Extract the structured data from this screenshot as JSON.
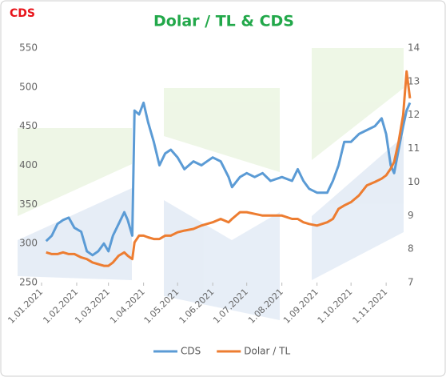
{
  "chart_data": {
    "type": "line",
    "title": "Dolar / TL & CDS",
    "ylabel": "CDS",
    "x": [
      "2021-01-05",
      "2021-01-10",
      "2021-01-15",
      "2021-01-20",
      "2021-01-25",
      "2021-01-30",
      "2021-02-05",
      "2021-02-10",
      "2021-02-15",
      "2021-02-20",
      "2021-02-25",
      "2021-03-01",
      "2021-03-05",
      "2021-03-10",
      "2021-03-15",
      "2021-03-18",
      "2021-03-22",
      "2021-03-24",
      "2021-03-28",
      "2021-04-01",
      "2021-04-05",
      "2021-04-10",
      "2021-04-15",
      "2021-04-20",
      "2021-04-25",
      "2021-05-01",
      "2021-05-07",
      "2021-05-15",
      "2021-05-22",
      "2021-06-01",
      "2021-06-08",
      "2021-06-15",
      "2021-06-18",
      "2021-06-25",
      "2021-07-01",
      "2021-07-08",
      "2021-07-15",
      "2021-07-22",
      "2021-08-01",
      "2021-08-10",
      "2021-08-15",
      "2021-08-20",
      "2021-08-25",
      "2021-09-01",
      "2021-09-10",
      "2021-09-15",
      "2021-09-20",
      "2021-09-25",
      "2021-10-01",
      "2021-10-08",
      "2021-10-15",
      "2021-10-22",
      "2021-10-28",
      "2021-11-01",
      "2021-11-05",
      "2021-11-08",
      "2021-11-12",
      "2021-11-16",
      "2021-11-19",
      "2021-11-22"
    ],
    "series": [
      {
        "name": "CDS",
        "color": "#5b9bd5",
        "axis": "y",
        "values": [
          303,
          310,
          325,
          330,
          333,
          320,
          315,
          290,
          285,
          290,
          300,
          290,
          310,
          325,
          340,
          330,
          310,
          470,
          465,
          480,
          455,
          430,
          400,
          415,
          420,
          410,
          395,
          405,
          400,
          410,
          405,
          385,
          372,
          385,
          390,
          385,
          390,
          380,
          385,
          380,
          395,
          380,
          370,
          365,
          365,
          380,
          400,
          430,
          430,
          440,
          445,
          450,
          460,
          440,
          400,
          390,
          420,
          450,
          470,
          480
        ]
      },
      {
        "name": "Dolar / TL",
        "color": "#ed7d31",
        "axis": "y2",
        "values": [
          7.9,
          7.85,
          7.85,
          7.9,
          7.85,
          7.85,
          7.75,
          7.7,
          7.6,
          7.55,
          7.5,
          7.5,
          7.6,
          7.8,
          7.9,
          7.8,
          7.7,
          8.2,
          8.4,
          8.4,
          8.35,
          8.3,
          8.3,
          8.4,
          8.4,
          8.5,
          8.55,
          8.6,
          8.7,
          8.8,
          8.9,
          8.8,
          8.9,
          9.1,
          9.1,
          9.05,
          9.0,
          9.0,
          9.0,
          8.9,
          8.9,
          8.8,
          8.75,
          8.7,
          8.8,
          8.9,
          9.2,
          9.3,
          9.4,
          9.6,
          9.9,
          10.0,
          10.1,
          10.2,
          10.4,
          10.6,
          11.2,
          12.0,
          13.3,
          12.5
        ]
      }
    ],
    "xlim": [
      "2021-01-01",
      "2021-11-27"
    ],
    "xticks": [
      {
        "value": "2021-01-01",
        "label": "1.01.2021"
      },
      {
        "value": "2021-02-01",
        "label": "1.02.2021"
      },
      {
        "value": "2021-03-01",
        "label": "1.03.2021"
      },
      {
        "value": "2021-04-01",
        "label": "1.04.2021"
      },
      {
        "value": "2021-05-01",
        "label": "1.05.2021"
      },
      {
        "value": "2021-06-01",
        "label": "1.06.2021"
      },
      {
        "value": "2021-07-01",
        "label": "1.07.2021"
      },
      {
        "value": "2021-08-01",
        "label": "1.08.2021"
      },
      {
        "value": "2021-09-01",
        "label": "1.09.2021"
      },
      {
        "value": "2021-10-01",
        "label": "1.10.2021"
      },
      {
        "value": "2021-11-01",
        "label": "1.11.2021"
      }
    ],
    "ylim": [
      250,
      550
    ],
    "yticks": [
      250,
      300,
      350,
      400,
      450,
      500,
      550
    ],
    "y2lim": [
      7,
      14
    ],
    "y2ticks": [
      7,
      8,
      9,
      10,
      11,
      12,
      13,
      14
    ],
    "legend": "bottom"
  }
}
